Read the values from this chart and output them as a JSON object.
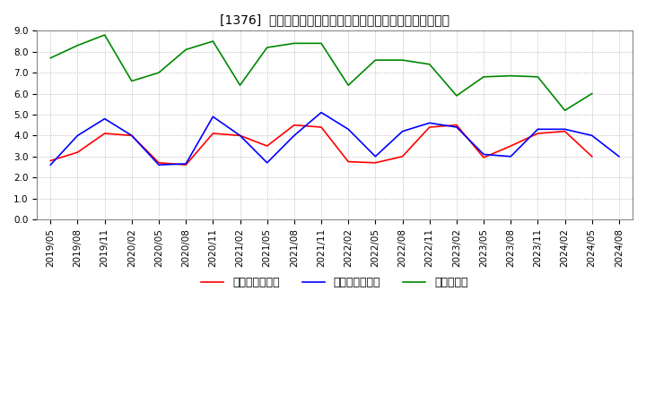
{
  "title": "[1376]  売上債権回転率、買入債務回転率、在庫回転率の推移",
  "ylim": [
    0.0,
    9.0
  ],
  "yticks": [
    0.0,
    1.0,
    2.0,
    3.0,
    4.0,
    5.0,
    6.0,
    7.0,
    8.0,
    9.0
  ],
  "dates": [
    "2019/05",
    "2019/08",
    "2019/11",
    "2020/02",
    "2020/05",
    "2020/08",
    "2020/11",
    "2021/02",
    "2021/05",
    "2021/08",
    "2021/11",
    "2022/02",
    "2022/05",
    "2022/08",
    "2022/11",
    "2023/02",
    "2023/05",
    "2023/08",
    "2023/11",
    "2024/02",
    "2024/05",
    "2024/08"
  ],
  "売上債権回転率": [
    2.8,
    3.2,
    4.1,
    4.0,
    2.7,
    2.6,
    4.1,
    4.0,
    3.5,
    4.5,
    4.4,
    2.75,
    2.7,
    3.0,
    4.4,
    4.5,
    2.95,
    3.5,
    4.1,
    4.2,
    3.0,
    null
  ],
  "買入債務回転率": [
    2.6,
    4.0,
    4.8,
    4.0,
    2.6,
    2.65,
    4.9,
    4.0,
    2.7,
    4.0,
    5.1,
    4.3,
    3.0,
    4.2,
    4.6,
    4.4,
    3.1,
    3.0,
    4.3,
    4.3,
    4.0,
    3.0
  ],
  "在庫回転率": [
    7.7,
    8.3,
    8.8,
    6.6,
    7.0,
    8.1,
    8.5,
    6.4,
    8.2,
    8.4,
    8.4,
    6.4,
    7.6,
    7.6,
    7.4,
    5.9,
    6.8,
    6.85,
    6.8,
    5.2,
    6.0,
    null
  ],
  "line_colors": {
    "売上債権回転率": "#ff0000",
    "買入債務回転率": "#0000ff",
    "在庫回転率": "#008800"
  },
  "legend_labels": [
    "売上債権回転率",
    "買入債務回転率",
    "在庫回転率"
  ],
  "background_color": "#ffffff",
  "grid_color": "#aaaaaa",
  "title_fontsize": 11,
  "tick_fontsize": 7.5,
  "legend_fontsize": 9
}
